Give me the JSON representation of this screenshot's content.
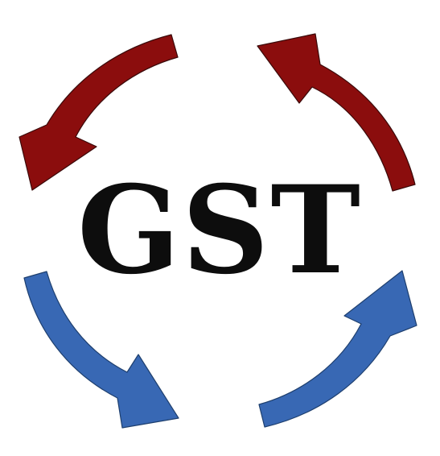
{
  "logo": {
    "text": "GST"
  },
  "colors": {
    "red_arrow": "#8b0d0d",
    "blue_arrow": "#3868b4",
    "text": "#0d0d0d",
    "background": "#ffffff"
  },
  "icons": {
    "top_left": "curved-arrow-counterclockwise-icon",
    "top_right": "curved-arrow-counterclockwise-icon",
    "bottom_left": "curved-arrow-counterclockwise-icon",
    "bottom_right": "curved-arrow-counterclockwise-icon"
  }
}
